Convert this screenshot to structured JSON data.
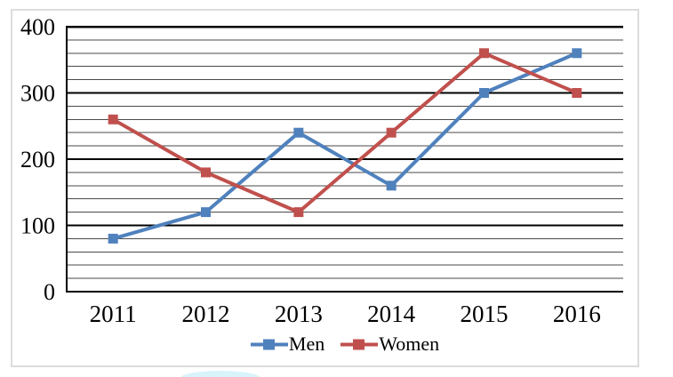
{
  "chart_data": {
    "type": "line",
    "title": "",
    "categories": [
      "2011",
      "2012",
      "2013",
      "2014",
      "2015",
      "2016"
    ],
    "series": [
      {
        "name": "Men",
        "color": "#4F81BD",
        "values": [
          80,
          120,
          240,
          160,
          300,
          360
        ]
      },
      {
        "name": "Women",
        "color": "#C0504D",
        "values": [
          260,
          180,
          120,
          240,
          360,
          300
        ]
      }
    ],
    "xlabel": "",
    "ylabel": "",
    "ylim": [
      0,
      400
    ],
    "y_major_ticks": [
      0,
      100,
      200,
      300,
      400
    ],
    "y_minor_interval": 20,
    "grid": true,
    "marker": "square",
    "legend_position": "bottom"
  }
}
